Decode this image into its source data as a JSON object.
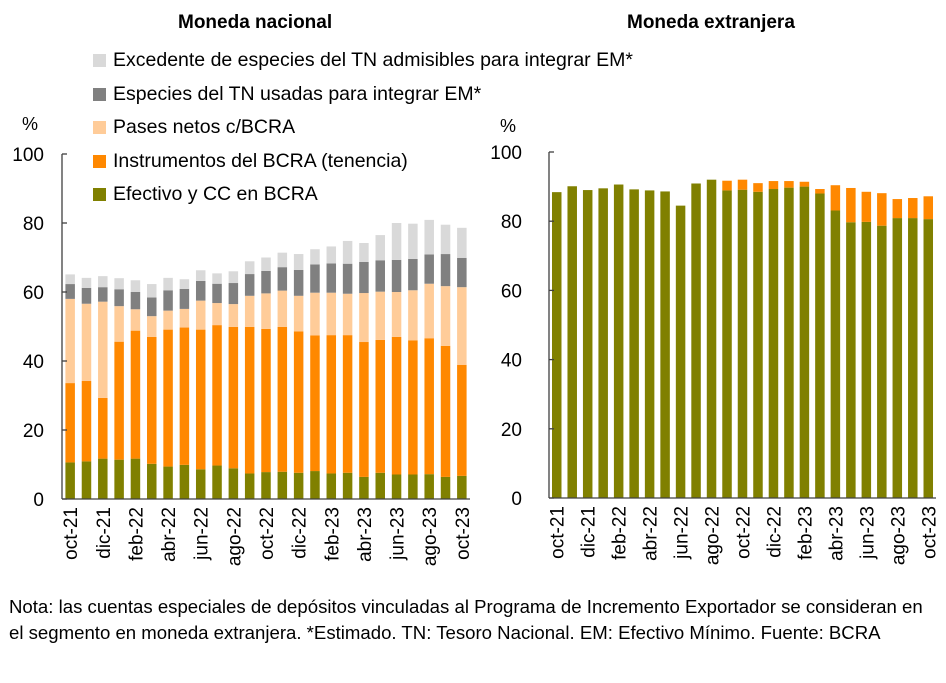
{
  "note": "Nota: las cuentas especiales de depósitos vinculadas al Programa de Incremento Exportador se consideran en el segmento en moneda extranjera. *Estimado. TN: Tesoro Nacional. EM: Efectivo Mínimo. Fuente: BCRA",
  "legend": [
    {
      "label": "Excedente de especies del TN admisibles para integrar EM*",
      "color": "#D9D9D9"
    },
    {
      "label": "Especies del TN usadas para integrar EM*",
      "color": "#808080"
    },
    {
      "label": "Pases netos c/BCRA",
      "color": "#FFCC99"
    },
    {
      "label": "Instrumentos del BCRA (tenencia)",
      "color": "#FF8800"
    },
    {
      "label": "Efectivo y CC en BCRA",
      "color": "#808000"
    }
  ],
  "chart_data": [
    {
      "type": "bar",
      "stacked": true,
      "title": "Moneda nacional",
      "ylabel": "%",
      "xlabel": "",
      "ylim": [
        0,
        100
      ],
      "yticks": [
        0,
        20,
        40,
        60,
        80,
        100
      ],
      "grid": false,
      "legend_position": "top",
      "categories": [
        "oct-21",
        "nov-21",
        "dic-21",
        "ene-22",
        "feb-22",
        "mar-22",
        "abr-22",
        "may-22",
        "jun-22",
        "jul-22",
        "ago-22",
        "sep-22",
        "oct-22",
        "nov-22",
        "dic-22",
        "ene-23",
        "feb-23",
        "mar-23",
        "abr-23",
        "may-23",
        "jun-23",
        "jul-23",
        "ago-23",
        "sep-23",
        "oct-23"
      ],
      "tick_labels": [
        "oct-21",
        "dic-21",
        "feb-22",
        "abr-22",
        "jun-22",
        "ago-22",
        "oct-22",
        "dic-22",
        "feb-23",
        "abr-23",
        "jun-23",
        "ago-23",
        "oct-23"
      ],
      "series": [
        {
          "name": "Efectivo y CC en BCRA",
          "color": "#808000",
          "values": [
            10.6,
            10.9,
            11.7,
            11.4,
            11.7,
            10.2,
            9.4,
            9.9,
            8.6,
            9.7,
            8.9,
            7.4,
            7.8,
            7.9,
            7.6,
            8.1,
            7.4,
            7.6,
            6.4,
            7.6,
            7.1,
            7.1,
            7.2,
            6.4,
            6.7
          ]
        },
        {
          "name": "Instrumentos del BCRA (tenencia)",
          "color": "#FF8800",
          "values": [
            23.0,
            23.3,
            17.6,
            34.2,
            37.1,
            36.8,
            39.7,
            39.8,
            40.5,
            40.7,
            41.0,
            42.5,
            41.5,
            42.0,
            41.0,
            39.3,
            40.1,
            39.9,
            39.1,
            38.5,
            39.9,
            38.9,
            39.4,
            38.0,
            32.2
          ]
        },
        {
          "name": "Pases netos c/BCRA",
          "color": "#FFCC99",
          "values": [
            24.4,
            22.4,
            27.9,
            10.3,
            6.2,
            6.0,
            5.5,
            5.4,
            8.4,
            6.4,
            6.6,
            9.0,
            10.3,
            10.5,
            10.3,
            12.4,
            12.3,
            12.0,
            14.2,
            14.0,
            13.0,
            14.5,
            15.8,
            17.3,
            22.5
          ]
        },
        {
          "name": "Especies del TN usadas para integrar EM*",
          "color": "#808080",
          "values": [
            4.3,
            4.6,
            4.2,
            4.9,
            5.0,
            5.4,
            5.9,
            5.8,
            5.7,
            5.6,
            6.1,
            6.3,
            6.5,
            6.8,
            7.5,
            8.2,
            8.5,
            8.7,
            9.0,
            9.1,
            9.3,
            9.1,
            8.5,
            9.3,
            8.5
          ]
        },
        {
          "name": "Excedente de especies del TN admisibles para integrar EM*",
          "color": "#D9D9D9",
          "values": [
            2.8,
            2.9,
            3.2,
            3.2,
            3.4,
            3.9,
            3.6,
            2.8,
            3.1,
            3.0,
            3.4,
            3.7,
            3.9,
            4.2,
            4.6,
            4.4,
            4.9,
            6.6,
            5.5,
            7.3,
            10.7,
            10.2,
            10.0,
            8.5,
            8.7
          ]
        }
      ]
    },
    {
      "type": "bar",
      "stacked": true,
      "title": "Moneda extranjera",
      "ylabel": "%",
      "xlabel": "",
      "ylim": [
        0,
        100
      ],
      "yticks": [
        0,
        20,
        40,
        60,
        80,
        100
      ],
      "grid": false,
      "categories": [
        "oct-21",
        "nov-21",
        "dic-21",
        "ene-22",
        "feb-22",
        "mar-22",
        "abr-22",
        "may-22",
        "jun-22",
        "jul-22",
        "ago-22",
        "sep-22",
        "oct-22",
        "nov-22",
        "dic-22",
        "ene-23",
        "feb-23",
        "mar-23",
        "abr-23",
        "may-23",
        "jun-23",
        "jul-23",
        "ago-23",
        "sep-23",
        "oct-23"
      ],
      "tick_labels": [
        "oct-21",
        "dic-21",
        "feb-22",
        "abr-22",
        "jun-22",
        "ago-22",
        "oct-22",
        "dic-22",
        "feb-23",
        "abr-23",
        "jun-23",
        "ago-23",
        "oct-23"
      ],
      "series": [
        {
          "name": "Efectivo y CC en BCRA",
          "color": "#808000",
          "values": [
            88.4,
            90.1,
            89.0,
            89.5,
            90.6,
            89.2,
            88.9,
            88.6,
            84.5,
            90.9,
            92.0,
            88.9,
            89.1,
            88.5,
            89.3,
            89.7,
            90.0,
            88.0,
            83.1,
            79.7,
            79.8,
            78.7,
            80.9,
            80.9,
            80.6
          ]
        },
        {
          "name": "Instrumentos del BCRA (tenencia)",
          "color": "#FF8800",
          "values": [
            0,
            0,
            0,
            0,
            0,
            0,
            0,
            0,
            0,
            0,
            0,
            2.8,
            2.9,
            2.5,
            2.3,
            1.9,
            1.4,
            1.3,
            7.3,
            9.9,
            8.7,
            9.4,
            5.5,
            5.8,
            6.6
          ]
        }
      ]
    }
  ]
}
